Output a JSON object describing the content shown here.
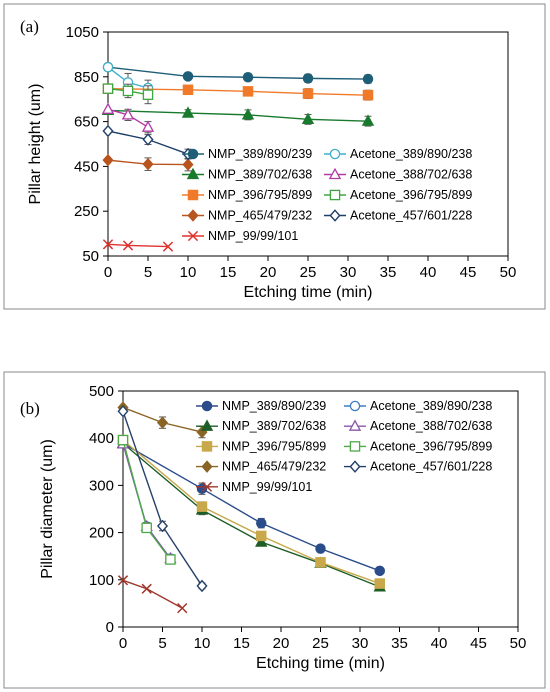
{
  "chart_data": [
    {
      "type": "line",
      "panel_label": "(a)",
      "xlabel": "Etching time (min)",
      "ylabel": "Pillar height (um)",
      "xlim": [
        0,
        50
      ],
      "ylim": [
        50,
        1050
      ],
      "xticks": [
        0,
        5,
        10,
        15,
        20,
        25,
        30,
        35,
        40,
        45,
        50
      ],
      "yticks": [
        50,
        250,
        450,
        650,
        850,
        1050
      ],
      "grid": false,
      "legend_position": "center-right",
      "series": [
        {
          "name": "NMP_389/890/239",
          "color": "#1f5e77",
          "marker": "circle-filled",
          "x": [
            0,
            10,
            17.5,
            25,
            32.5
          ],
          "y": [
            893,
            852,
            848,
            843,
            840
          ],
          "err": [
            0,
            15,
            15,
            18,
            18
          ]
        },
        {
          "name": "Acetone_389/890/238",
          "color": "#3fb0c9",
          "marker": "circle-open",
          "x": [
            0,
            2.5,
            5
          ],
          "y": [
            893,
            825,
            800
          ],
          "err": [
            0,
            40,
            35
          ]
        },
        {
          "name": "NMP_389/702/638",
          "color": "#197a2e",
          "marker": "triangle-filled",
          "x": [
            0,
            10,
            17.5,
            25,
            32.5
          ],
          "y": [
            700,
            688,
            680,
            660,
            652
          ],
          "err": [
            0,
            15,
            22,
            22,
            22
          ]
        },
        {
          "name": "Acetone_388/702/638",
          "color": "#b23aa5",
          "marker": "triangle-open",
          "x": [
            0,
            2.5,
            5
          ],
          "y": [
            705,
            680,
            625
          ],
          "err": [
            0,
            25,
            25
          ]
        },
        {
          "name": "NMP_396/795/899",
          "color": "#f07a2a",
          "marker": "square-filled",
          "x": [
            0,
            10,
            17.5,
            25,
            32.5
          ],
          "y": [
            797,
            792,
            785,
            775,
            768
          ],
          "err": [
            0,
            15,
            18,
            22,
            22
          ]
        },
        {
          "name": "Acetone_396/795/899",
          "color": "#3ea63f",
          "marker": "square-open",
          "x": [
            0,
            2.5,
            5
          ],
          "y": [
            797,
            787,
            770
          ],
          "err": [
            0,
            30,
            40
          ]
        },
        {
          "name": "NMP_465/479/232",
          "color": "#b8541e",
          "marker": "diamond-filled",
          "x": [
            0,
            5,
            10
          ],
          "y": [
            478,
            460,
            458
          ],
          "err": [
            0,
            28,
            28
          ]
        },
        {
          "name": "Acetone_457/601/228",
          "color": "#1f3f6a",
          "marker": "diamond-open",
          "x": [
            0,
            5,
            10
          ],
          "y": [
            608,
            570,
            505
          ],
          "err": [
            0,
            22,
            22
          ]
        },
        {
          "name": "NMP_99/99/101",
          "color": "#e0312e",
          "marker": "cross",
          "x": [
            0,
            2.5,
            7.5
          ],
          "y": [
            102,
            97,
            92
          ],
          "err": [
            0,
            0,
            0
          ]
        }
      ]
    },
    {
      "type": "line",
      "panel_label": "(b)",
      "xlabel": "Etching time (min)",
      "ylabel": "Pillar diameter (um)",
      "xlim": [
        0,
        50
      ],
      "ylim": [
        0,
        500
      ],
      "xticks": [
        0,
        5,
        10,
        15,
        20,
        25,
        30,
        35,
        40,
        45,
        50
      ],
      "yticks": [
        0,
        100,
        200,
        300,
        400,
        500
      ],
      "grid": false,
      "legend_position": "top-right",
      "series": [
        {
          "name": "NMP_389/890/239",
          "color": "#2a4c8a",
          "marker": "circle-filled",
          "x": [
            0,
            10,
            17.5,
            25,
            32.5
          ],
          "y": [
            389,
            293,
            220,
            166,
            119
          ],
          "err": [
            0,
            12,
            10,
            6,
            4
          ]
        },
        {
          "name": "Acetone_389/890/238",
          "color": "#3c7fc4",
          "marker": "circle-open",
          "x": [
            0,
            3,
            6
          ],
          "y": [
            389,
            213,
            145
          ],
          "err": [
            0,
            8,
            8
          ]
        },
        {
          "name": "NMP_389/702/638",
          "color": "#1e5d26",
          "marker": "triangle-filled",
          "x": [
            0,
            10,
            17.5,
            25,
            32.5
          ],
          "y": [
            389,
            248,
            180,
            135,
            85
          ],
          "err": [
            0,
            10,
            8,
            6,
            4
          ]
        },
        {
          "name": "Acetone_388/702/638",
          "color": "#8a56a8",
          "marker": "triangle-open",
          "x": [
            0,
            3,
            6
          ],
          "y": [
            388,
            213,
            145
          ],
          "err": [
            0,
            8,
            8
          ]
        },
        {
          "name": "NMP_396/795/899",
          "color": "#c8a84a",
          "marker": "square-filled",
          "x": [
            0,
            10,
            17.5,
            25,
            32.5
          ],
          "y": [
            396,
            255,
            193,
            137,
            92
          ],
          "err": [
            0,
            10,
            8,
            6,
            4
          ]
        },
        {
          "name": "Acetone_396/795/899",
          "color": "#4ea848",
          "marker": "square-open",
          "x": [
            0,
            3,
            6
          ],
          "y": [
            396,
            210,
            143
          ],
          "err": [
            0,
            8,
            8
          ]
        },
        {
          "name": "NMP_465/479/232",
          "color": "#8a6424",
          "marker": "diamond-filled",
          "x": [
            0,
            5,
            10
          ],
          "y": [
            465,
            433,
            413
          ],
          "err": [
            0,
            12,
            12
          ]
        },
        {
          "name": "Acetone_457/601/228",
          "color": "#24406a",
          "marker": "diamond-open",
          "x": [
            0,
            5,
            10
          ],
          "y": [
            457,
            214,
            87
          ],
          "err": [
            0,
            10,
            6
          ]
        },
        {
          "name": "NMP_99/99/101",
          "color": "#a0362a",
          "marker": "cross",
          "x": [
            0,
            3,
            7.5
          ],
          "y": [
            99,
            81,
            40
          ],
          "err": [
            0,
            0,
            0
          ]
        }
      ]
    }
  ]
}
